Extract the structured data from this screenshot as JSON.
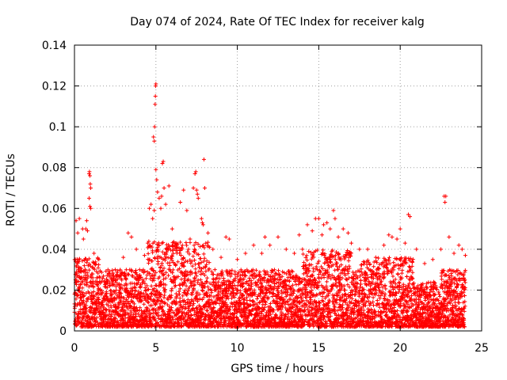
{
  "chart_data": {
    "type": "scatter",
    "title": "Day 074 of 2024, Rate Of TEC Index for receiver kalg",
    "xlabel": "GPS time / hours",
    "ylabel": "ROTI / TECUs",
    "xlim": [
      0,
      25
    ],
    "ylim": [
      0,
      0.14
    ],
    "xticks": [
      "0",
      "5",
      "10",
      "15",
      "20",
      "25"
    ],
    "yticks": [
      "0",
      "0.02",
      "0.04",
      "0.06",
      "0.08",
      "0.1",
      "0.12",
      "0.14"
    ],
    "grid": true,
    "marker": "+",
    "color": "#ff0000",
    "data_range": [
      0,
      24
    ],
    "series": [
      {
        "name": "ROTI",
        "points": [
          [
            0.05,
            0.035
          ],
          [
            0.1,
            0.054
          ],
          [
            0.2,
            0.048
          ],
          [
            0.25,
            0.034
          ],
          [
            0.3,
            0.055
          ],
          [
            0.5,
            0.05
          ],
          [
            0.55,
            0.045
          ],
          [
            0.7,
            0.05
          ],
          [
            0.75,
            0.054
          ],
          [
            0.8,
            0.049
          ],
          [
            0.9,
            0.077
          ],
          [
            0.92,
            0.078
          ],
          [
            0.95,
            0.076
          ],
          [
            0.97,
            0.072
          ],
          [
            1.0,
            0.07
          ],
          [
            0.9,
            0.065
          ],
          [
            0.95,
            0.061
          ],
          [
            1.0,
            0.06
          ],
          [
            1.2,
            0.038
          ],
          [
            1.5,
            0.035
          ],
          [
            2.5,
            0.03
          ],
          [
            3.0,
            0.036
          ],
          [
            3.3,
            0.048
          ],
          [
            3.5,
            0.046
          ],
          [
            3.8,
            0.04
          ],
          [
            4.0,
            0.03
          ],
          [
            4.3,
            0.037
          ],
          [
            4.5,
            0.043
          ],
          [
            4.6,
            0.06
          ],
          [
            4.7,
            0.062
          ],
          [
            4.8,
            0.055
          ],
          [
            4.9,
            0.059
          ],
          [
            4.85,
            0.095
          ],
          [
            4.9,
            0.093
          ],
          [
            4.92,
            0.1
          ],
          [
            4.95,
            0.111
          ],
          [
            4.97,
            0.115
          ],
          [
            4.98,
            0.12
          ],
          [
            5.0,
            0.121
          ],
          [
            5.0,
            0.079
          ],
          [
            5.05,
            0.074
          ],
          [
            5.1,
            0.068
          ],
          [
            5.2,
            0.065
          ],
          [
            5.3,
            0.06
          ],
          [
            5.35,
            0.066
          ],
          [
            5.4,
            0.082
          ],
          [
            5.45,
            0.083
          ],
          [
            5.5,
            0.07
          ],
          [
            5.6,
            0.062
          ],
          [
            5.8,
            0.071
          ],
          [
            6.0,
            0.05
          ],
          [
            6.3,
            0.042
          ],
          [
            6.5,
            0.063
          ],
          [
            6.7,
            0.069
          ],
          [
            6.9,
            0.059
          ],
          [
            7.1,
            0.045
          ],
          [
            7.3,
            0.07
          ],
          [
            7.4,
            0.077
          ],
          [
            7.45,
            0.078
          ],
          [
            7.5,
            0.069
          ],
          [
            7.55,
            0.067
          ],
          [
            7.6,
            0.065
          ],
          [
            7.8,
            0.055
          ],
          [
            7.85,
            0.053
          ],
          [
            7.9,
            0.052
          ],
          [
            7.95,
            0.084
          ],
          [
            8.0,
            0.07
          ],
          [
            8.2,
            0.048
          ],
          [
            8.5,
            0.04
          ],
          [
            9.0,
            0.036
          ],
          [
            9.3,
            0.046
          ],
          [
            9.5,
            0.045
          ],
          [
            10.0,
            0.035
          ],
          [
            10.5,
            0.038
          ],
          [
            11.0,
            0.042
          ],
          [
            11.5,
            0.038
          ],
          [
            11.7,
            0.046
          ],
          [
            12.0,
            0.042
          ],
          [
            12.5,
            0.046
          ],
          [
            13.0,
            0.04
          ],
          [
            13.5,
            0.038
          ],
          [
            13.8,
            0.047
          ],
          [
            14.0,
            0.04
          ],
          [
            14.3,
            0.052
          ],
          [
            14.6,
            0.049
          ],
          [
            14.8,
            0.055
          ],
          [
            15.0,
            0.055
          ],
          [
            15.2,
            0.047
          ],
          [
            15.3,
            0.052
          ],
          [
            15.5,
            0.053
          ],
          [
            15.7,
            0.05
          ],
          [
            15.9,
            0.059
          ],
          [
            16.0,
            0.055
          ],
          [
            16.2,
            0.046
          ],
          [
            16.5,
            0.05
          ],
          [
            16.8,
            0.048
          ],
          [
            17.0,
            0.043
          ],
          [
            17.5,
            0.04
          ],
          [
            18.0,
            0.04
          ],
          [
            18.5,
            0.036
          ],
          [
            19.0,
            0.042
          ],
          [
            19.3,
            0.047
          ],
          [
            19.5,
            0.046
          ],
          [
            19.8,
            0.045
          ],
          [
            20.0,
            0.05
          ],
          [
            20.3,
            0.043
          ],
          [
            20.5,
            0.057
          ],
          [
            20.6,
            0.056
          ],
          [
            21.0,
            0.04
          ],
          [
            21.5,
            0.033
          ],
          [
            22.0,
            0.035
          ],
          [
            22.5,
            0.04
          ],
          [
            22.7,
            0.066
          ],
          [
            22.75,
            0.063
          ],
          [
            22.8,
            0.066
          ],
          [
            23.0,
            0.046
          ],
          [
            23.3,
            0.038
          ],
          [
            23.6,
            0.042
          ],
          [
            23.8,
            0.04
          ],
          [
            24.0,
            0.037
          ]
        ],
        "dense_band": {
          "baseline_min": 0.002,
          "typical_max": 0.03,
          "note": "dense cloud of points across 0-24 h between ~0.002 and ~0.035"
        }
      }
    ]
  }
}
